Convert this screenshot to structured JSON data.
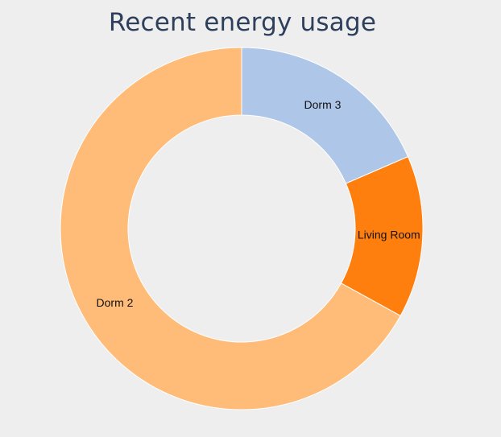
{
  "chart_data": {
    "type": "pie",
    "variant": "donut",
    "title": "Recent energy usage",
    "slices": [
      {
        "label": "Dorm 3",
        "value": 18.5,
        "color": "#aec7e8"
      },
      {
        "label": "Living Room",
        "value": 14.5,
        "color": "#ff7f0e"
      },
      {
        "label": "Dorm 2",
        "value": 67.0,
        "color": "#ffbb78"
      }
    ],
    "legend": "none",
    "labels_on_slices": true
  }
}
